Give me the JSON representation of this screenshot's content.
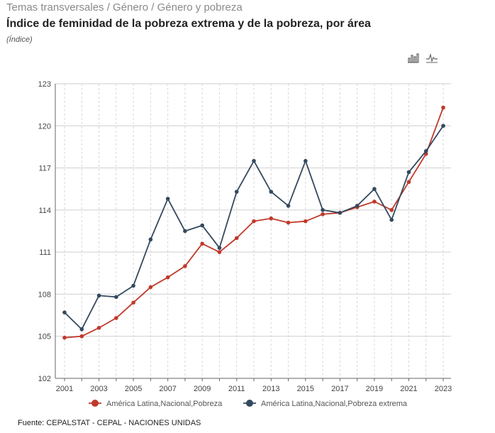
{
  "breadcrumb": "Temas transversales / Género / Género y pobreza",
  "title": "Índice de feminidad de la pobreza extrema y de la pobreza, por área",
  "subtitle": "(Índice)",
  "toolbar": {
    "icons": [
      "bar-chart-icon",
      "line-chart-icon"
    ]
  },
  "source": "Fuente: CEPALSTAT - CEPAL - NACIONES UNIDAS",
  "chart_data": {
    "type": "line",
    "ylim": [
      102,
      123
    ],
    "yticks": [
      102,
      105,
      108,
      111,
      114,
      117,
      120,
      123
    ],
    "x": [
      2001,
      2002,
      2003,
      2004,
      2005,
      2006,
      2007,
      2008,
      2009,
      2010,
      2011,
      2012,
      2013,
      2014,
      2015,
      2016,
      2017,
      2018,
      2019,
      2020,
      2021,
      2022,
      2023
    ],
    "xtick_labels": [
      "2001",
      "2003",
      "2005",
      "2007",
      "2009",
      "2011",
      "2013",
      "2015",
      "2017",
      "2019",
      "2021",
      "2023"
    ],
    "grid": true,
    "legend_position": "bottom",
    "series": [
      {
        "name": "América Latina,Nacional,Pobreza",
        "color": "#c0392b",
        "values": [
          104.9,
          105.0,
          105.6,
          106.3,
          107.4,
          108.5,
          109.2,
          110.0,
          111.6,
          111.0,
          112.0,
          113.2,
          113.4,
          113.1,
          113.2,
          113.7,
          113.8,
          114.2,
          114.6,
          114.0,
          116.0,
          118.0,
          121.3
        ]
      },
      {
        "name": "América Latina,Nacional,Pobreza extrema",
        "color": "#34495e",
        "values": [
          106.7,
          105.5,
          107.9,
          107.8,
          108.6,
          111.9,
          114.8,
          112.5,
          112.9,
          111.3,
          115.3,
          117.5,
          115.3,
          114.3,
          117.5,
          114.0,
          113.8,
          114.3,
          115.5,
          113.3,
          116.7,
          118.2,
          120.0
        ]
      }
    ]
  }
}
